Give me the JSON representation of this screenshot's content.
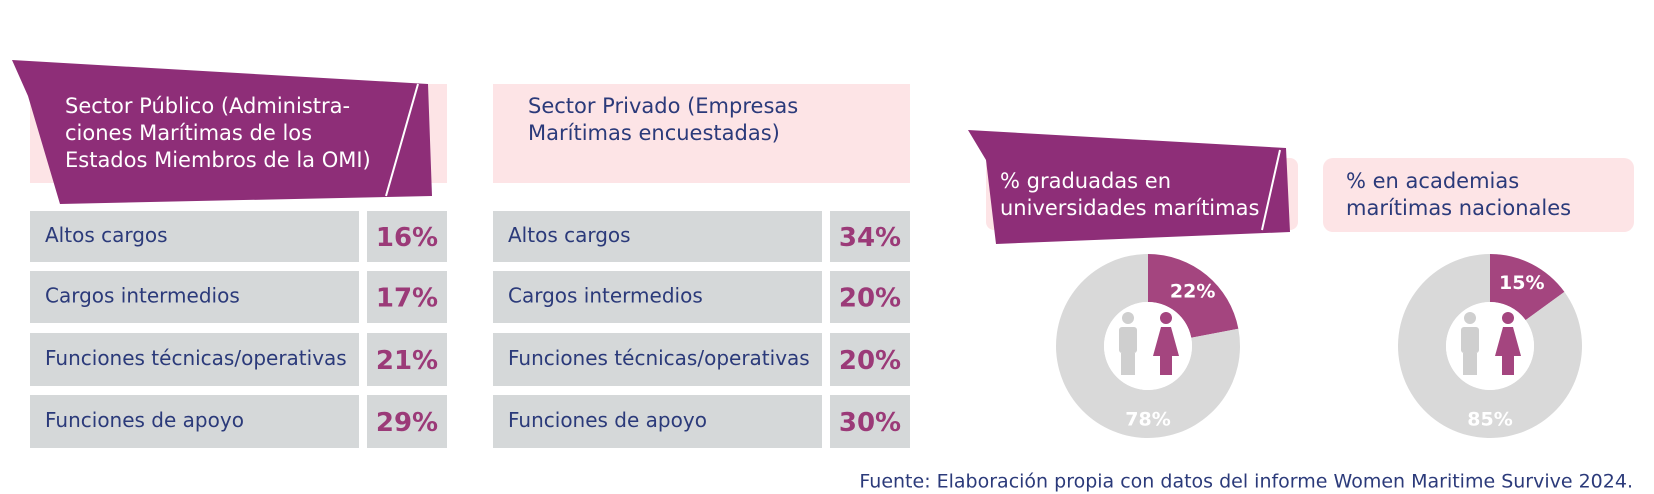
{
  "tables": [
    {
      "title_lines": [
        "Sector Público (Administra-",
        "ciones Marítimas de los",
        "Estados Miembros de la OMI)"
      ],
      "rows": [
        [
          "Altos cargos",
          "16%"
        ],
        [
          "Cargos intermedios",
          "17%"
        ],
        [
          "Funciones técnicas/operativas",
          "21%"
        ],
        [
          "Funciones de apoyo",
          "29%"
        ]
      ]
    },
    {
      "title_lines": [
        "Sector Privado (Empresas",
        "Marítimas encuestadas)"
      ],
      "rows": [
        [
          "Altos cargos",
          "34%"
        ],
        [
          "Cargos intermedios",
          "20%"
        ],
        [
          "Funciones técnicas/operativas",
          "20%"
        ],
        [
          "Funciones de apoyo",
          "30%"
        ]
      ]
    }
  ],
  "donuts": [
    {
      "type": "pie",
      "title_lines": [
        "% graduadas en",
        "universidades marítimas"
      ],
      "values": [
        22,
        78
      ],
      "value_labels": [
        "22%",
        "78%"
      ],
      "colors": [
        "#a4457f",
        "#d9d9d9"
      ]
    },
    {
      "type": "pie",
      "title_lines": [
        "% en academias",
        "marítimas nacionales"
      ],
      "values": [
        15,
        85
      ],
      "value_labels": [
        "15%",
        "85%"
      ],
      "colors": [
        "#a4457f",
        "#d9d9d9"
      ]
    }
  ],
  "source": "Fuente: Elaboración propia con datos del informe Women Maritime Survive 2024."
}
